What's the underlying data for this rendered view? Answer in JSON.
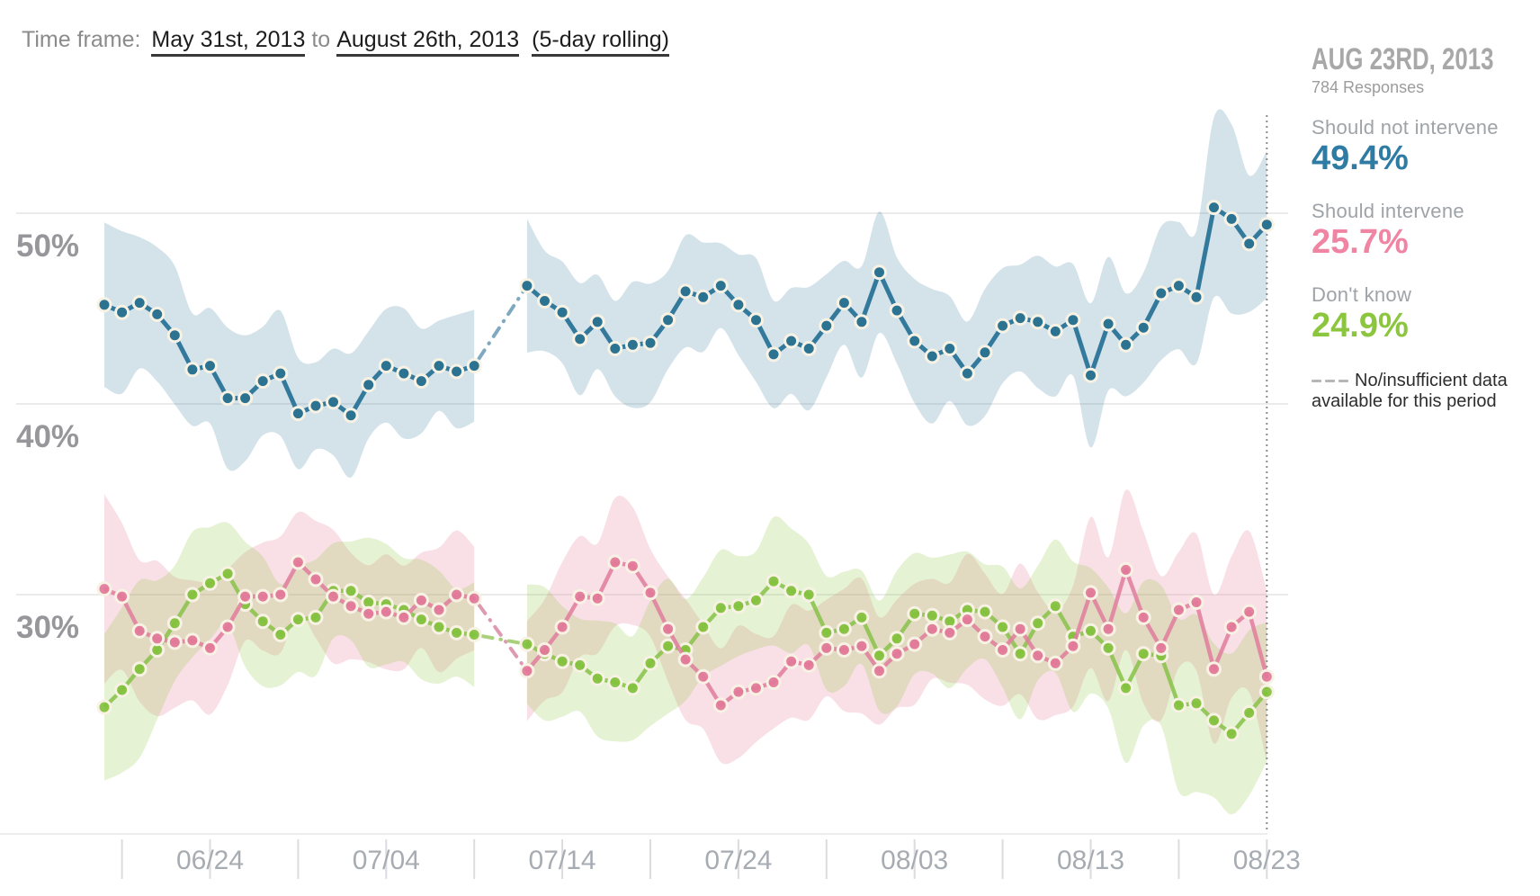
{
  "header": {
    "label": "Time frame:",
    "start_date": "May 31st, 2013",
    "joiner": "to",
    "end_date": "August 26th, 2013",
    "rolling_note": "(5-day rolling)"
  },
  "info_panel": {
    "date_heading": "AUG 23RD, 2013",
    "responses": "784 Responses",
    "series": [
      {
        "label": "Should not intervene",
        "value": "49.4%",
        "color": "#2e7ba4"
      },
      {
        "label": "Should intervene",
        "value": "25.7%",
        "color": "#ef85a3"
      },
      {
        "label": "Don't know",
        "value": "24.9%",
        "color": "#8cc63f"
      }
    ],
    "no_data_note_line1": "No/insufficient data",
    "no_data_note_line2": "available for this period"
  },
  "chart_data": {
    "type": "line",
    "unit": "%",
    "title": "",
    "ylim": [
      17.5,
      58
    ],
    "grid": "horizontal",
    "legend_position": "right",
    "highlight_date": "08/23",
    "gap_dates": [
      "07/10",
      "07/11"
    ],
    "y_ticks": [
      {
        "value": 50,
        "label": "50%"
      },
      {
        "value": 40,
        "label": "40%"
      },
      {
        "value": 30,
        "label": "30%"
      }
    ],
    "x_tick_dates": [
      "06/19",
      "06/24",
      "06/29",
      "07/04",
      "07/09",
      "07/14",
      "07/19",
      "07/24",
      "07/29",
      "08/03",
      "08/08",
      "08/13",
      "08/18",
      "08/23"
    ],
    "x_label_dates": [
      "06/24",
      "07/04",
      "07/14",
      "07/24",
      "08/03",
      "08/13",
      "08/23"
    ],
    "x_dates": [
      "06/18",
      "06/19",
      "06/20",
      "06/21",
      "06/22",
      "06/23",
      "06/24",
      "06/25",
      "06/26",
      "06/27",
      "06/28",
      "06/29",
      "06/30",
      "07/01",
      "07/02",
      "07/03",
      "07/04",
      "07/05",
      "07/06",
      "07/07",
      "07/08",
      "07/09",
      "07/10",
      "07/11",
      "07/12",
      "07/13",
      "07/14",
      "07/15",
      "07/16",
      "07/17",
      "07/18",
      "07/19",
      "07/20",
      "07/21",
      "07/22",
      "07/23",
      "07/24",
      "07/25",
      "07/26",
      "07/27",
      "07/28",
      "07/29",
      "07/30",
      "07/31",
      "08/01",
      "08/02",
      "08/03",
      "08/04",
      "08/05",
      "08/06",
      "08/07",
      "08/08",
      "08/09",
      "08/10",
      "08/11",
      "08/12",
      "08/13",
      "08/14",
      "08/15",
      "08/16",
      "08/17",
      "08/18",
      "08/19",
      "08/20",
      "08/21",
      "08/22",
      "08/23"
    ],
    "series": [
      {
        "id": "should-not-intervene",
        "name": "Should not intervene",
        "color": "#33799c",
        "dot_color": "#2c7391",
        "gap_color": "#7fa9c0",
        "band_color": "rgba(58,127,160,0.22)",
        "line_opacity": 1,
        "values": [
          45.2,
          44.8,
          45.3,
          44.7,
          43.6,
          41.8,
          42.0,
          40.3,
          40.3,
          41.2,
          41.6,
          39.5,
          39.9,
          40.1,
          39.4,
          41.0,
          42.0,
          41.6,
          41.2,
          42.0,
          41.7,
          42.0,
          null,
          null,
          46.2,
          45.4,
          44.8,
          43.4,
          44.3,
          42.9,
          43.1,
          43.2,
          44.4,
          45.9,
          45.6,
          46.2,
          45.2,
          44.4,
          42.6,
          43.3,
          42.9,
          44.1,
          45.3,
          44.3,
          46.9,
          44.9,
          43.3,
          42.5,
          42.9,
          41.6,
          42.7,
          44.1,
          44.5,
          44.3,
          43.8,
          44.4,
          41.5,
          44.2,
          43.1,
          44.0,
          45.8,
          46.2,
          45.6,
          50.3,
          49.7,
          48.4,
          49.4
        ],
        "band_margin": [
          3.9,
          3.8,
          3.7,
          3.6,
          3.5,
          3.4,
          3.3,
          3.2,
          3.1,
          3.0,
          3.0,
          2.9,
          2.9,
          2.9,
          2.9,
          2.9,
          2.9,
          2.9,
          2.9,
          2.9,
          2.9,
          2.9,
          null,
          null,
          3.0,
          2.9,
          2.9,
          2.8,
          2.8,
          2.8,
          2.8,
          2.8,
          2.8,
          2.8,
          2.8,
          2.8,
          2.8,
          2.8,
          2.8,
          2.8,
          2.8,
          2.8,
          2.8,
          2.9,
          3.0,
          3.0,
          3.0,
          3.0,
          3.0,
          3.1,
          3.2,
          3.2,
          3.1,
          3.0,
          3.0,
          3.2,
          3.8,
          3.4,
          3.2,
          3.1,
          3.0,
          3.2,
          3.6,
          4.4,
          5.0,
          4.2,
          3.9
        ]
      },
      {
        "id": "should-intervene",
        "name": "Should intervene",
        "color": "#e07f9e",
        "dot_color": "#e27899",
        "gap_color": "#dd9ab0",
        "band_color": "rgba(232,130,160,0.25)",
        "line_opacity": 0.88,
        "values": [
          30.3,
          29.9,
          28.1,
          27.7,
          27.5,
          27.6,
          27.2,
          28.3,
          29.9,
          29.9,
          30.0,
          31.7,
          30.8,
          29.9,
          29.4,
          29.0,
          29.1,
          28.8,
          29.7,
          29.2,
          30.0,
          29.8,
          null,
          null,
          26.0,
          27.1,
          28.3,
          29.9,
          29.8,
          31.7,
          31.5,
          30.1,
          28.2,
          26.6,
          25.7,
          24.2,
          24.9,
          25.1,
          25.4,
          26.5,
          26.3,
          27.2,
          27.1,
          27.3,
          26.0,
          26.9,
          27.4,
          28.2,
          28.0,
          28.7,
          27.8,
          27.1,
          28.2,
          26.8,
          26.4,
          27.3,
          30.1,
          28.2,
          31.3,
          28.8,
          27.2,
          29.2,
          29.6,
          26.1,
          28.3,
          29.1,
          25.7
        ],
        "band_margin": [
          4.8,
          4.4,
          4.0,
          3.7,
          3.4,
          3.2,
          3.0,
          3.0,
          2.9,
          2.9,
          2.9,
          2.9,
          2.9,
          2.9,
          2.9,
          2.9,
          2.9,
          2.9,
          2.9,
          2.9,
          2.9,
          2.9,
          null,
          null,
          3.1,
          3.0,
          3.0,
          3.0,
          3.0,
          3.0,
          3.0,
          2.9,
          2.9,
          2.9,
          2.9,
          2.9,
          2.9,
          2.9,
          2.9,
          2.9,
          2.9,
          2.9,
          2.9,
          3.0,
          3.0,
          3.0,
          3.0,
          3.0,
          3.0,
          3.0,
          3.0,
          3.1,
          3.2,
          3.2,
          3.3,
          3.4,
          3.6,
          3.8,
          4.2,
          4.0,
          3.8,
          3.6,
          3.6,
          3.8,
          4.0,
          4.0,
          3.9
        ]
      },
      {
        "id": "dont-know",
        "name": "Don't know",
        "color": "#8bc34c",
        "dot_color": "#82c13d",
        "gap_color": "#a9d07b",
        "band_color": "rgba(140,196,60,0.22)",
        "line_opacity": 0.88,
        "values": [
          24.1,
          25.0,
          26.1,
          27.1,
          28.5,
          30.0,
          30.6,
          31.1,
          29.5,
          28.6,
          27.9,
          28.7,
          28.8,
          30.2,
          30.2,
          29.6,
          29.5,
          29.2,
          28.7,
          28.3,
          28.0,
          27.9,
          null,
          null,
          27.4,
          26.9,
          26.5,
          26.3,
          25.6,
          25.4,
          25.1,
          26.4,
          27.3,
          27.1,
          28.3,
          29.3,
          29.4,
          29.7,
          30.7,
          30.2,
          30.0,
          28.0,
          28.2,
          28.8,
          26.8,
          27.7,
          29.0,
          28.9,
          28.6,
          29.2,
          29.1,
          28.3,
          26.9,
          28.5,
          29.4,
          27.8,
          28.1,
          27.2,
          25.1,
          26.9,
          26.8,
          24.2,
          24.3,
          23.4,
          22.7,
          23.8,
          24.9
        ],
        "band_margin": [
          4.0,
          4.2,
          4.1,
          3.8,
          3.5,
          3.2,
          3.0,
          3.0,
          2.9,
          2.9,
          2.9,
          2.9,
          2.9,
          2.9,
          2.9,
          2.9,
          2.9,
          2.9,
          2.9,
          2.9,
          2.9,
          2.9,
          null,
          null,
          3.1,
          3.0,
          3.0,
          3.0,
          3.0,
          3.0,
          3.0,
          3.0,
          3.0,
          2.9,
          2.9,
          2.9,
          2.9,
          2.9,
          2.9,
          2.9,
          2.9,
          2.9,
          2.9,
          3.0,
          3.1,
          3.1,
          3.1,
          3.1,
          3.1,
          3.1,
          3.1,
          3.2,
          3.2,
          3.2,
          3.3,
          3.4,
          3.5,
          3.6,
          3.8,
          3.9,
          4.0,
          4.1,
          4.2,
          4.3,
          4.3,
          4.2,
          4.1
        ]
      }
    ]
  }
}
